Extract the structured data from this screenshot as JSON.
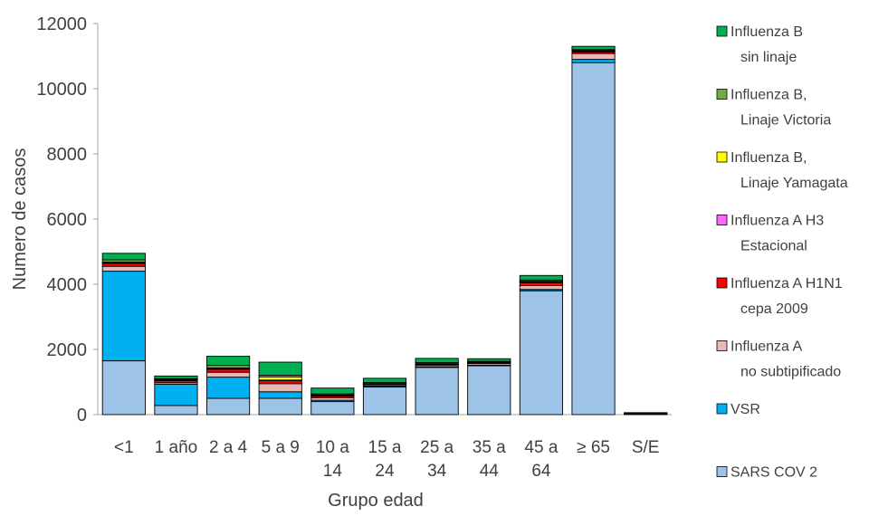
{
  "chart_data": {
    "type": "bar",
    "stacked": true,
    "title": "",
    "xlabel": "Grupo edad",
    "ylabel": "Numero de casos",
    "ylim": [
      0,
      12000
    ],
    "yticks": [
      "0",
      "2000",
      "4000",
      "6000",
      "8000",
      "10000",
      "12000"
    ],
    "grid": false,
    "legend_position": "right",
    "categories": [
      [
        "<1"
      ],
      [
        "1 año"
      ],
      [
        "2 a 4"
      ],
      [
        "5 a 9"
      ],
      [
        "10 a",
        "14"
      ],
      [
        "15 a",
        "24"
      ],
      [
        "25 a",
        "34"
      ],
      [
        "35 a",
        "44"
      ],
      [
        "45 a",
        "64"
      ],
      [
        "≥ 65"
      ],
      [
        "S/E"
      ]
    ],
    "series": [
      {
        "name": [
          "SARS COV 2"
        ],
        "color": "#9DC3E6",
        "values": [
          1650,
          280,
          500,
          500,
          400,
          850,
          1450,
          1500,
          3800,
          10800,
          40
        ]
      },
      {
        "name": [
          "VSR"
        ],
        "color": "#00B0F0",
        "values": [
          2750,
          650,
          650,
          200,
          40,
          30,
          20,
          20,
          40,
          100,
          5
        ]
      },
      {
        "name": [
          "Influenza A",
          "no subtipificado"
        ],
        "color": "#E6B9B8",
        "values": [
          150,
          50,
          150,
          250,
          80,
          40,
          50,
          50,
          120,
          180,
          5
        ]
      },
      {
        "name": [
          "Influenza A H1N1",
          "cepa 2009"
        ],
        "color": "#FF0000",
        "values": [
          100,
          80,
          100,
          100,
          60,
          20,
          30,
          30,
          100,
          60,
          5
        ]
      },
      {
        "name": [
          "Influenza A H3",
          "Estacional"
        ],
        "color": "#FF66FF",
        "values": [
          10,
          5,
          10,
          10,
          5,
          5,
          5,
          5,
          10,
          10,
          0
        ]
      },
      {
        "name": [
          "Influenza B,",
          "Linaje Yamagata"
        ],
        "color": "#FFFF00",
        "values": [
          20,
          10,
          20,
          100,
          20,
          10,
          10,
          10,
          20,
          20,
          0
        ]
      },
      {
        "name": [
          "Influenza B,",
          "Linaje Victoria"
        ],
        "color": "#70AD47",
        "values": [
          70,
          30,
          80,
          50,
          30,
          30,
          30,
          20,
          40,
          30,
          0
        ]
      },
      {
        "name": [
          "Influenza B",
          "sin linaje"
        ],
        "color": "#00B050",
        "values": [
          200,
          80,
          280,
          400,
          180,
          130,
          130,
          80,
          140,
          100,
          5
        ]
      }
    ]
  }
}
